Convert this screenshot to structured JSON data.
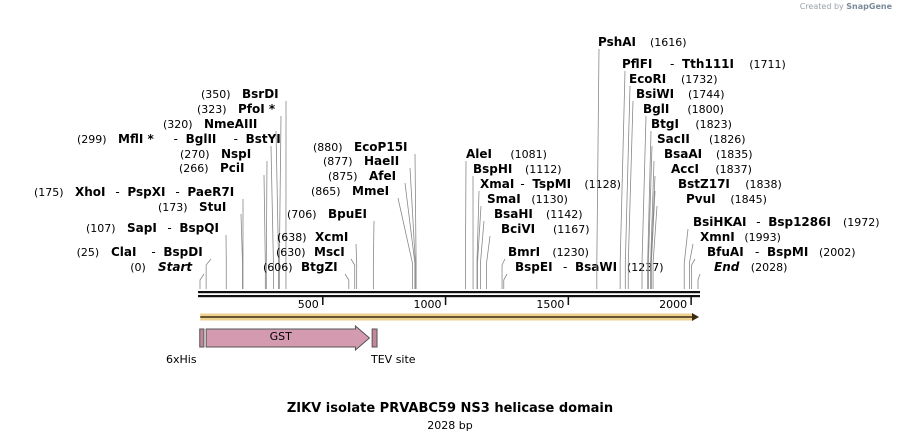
{
  "credit": {
    "prefix": "Created by",
    "brand": "SnapGene"
  },
  "title": "ZIKV isolate PRVABC59 NS3 helicase domain",
  "length_label": "2028 bp",
  "sequence_length": 2028,
  "ticks": [
    {
      "value": 500,
      "label": "500"
    },
    {
      "value": 1000,
      "label": "1000"
    },
    {
      "value": 1500,
      "label": "1500"
    },
    {
      "value": 2000,
      "label": "2000"
    }
  ],
  "features": [
    {
      "name": "6xHis",
      "label": "6xHis",
      "start": 1,
      "end": 18,
      "type": "tag",
      "color": "#c4869a"
    },
    {
      "name": "GST",
      "label": "GST",
      "start": 25,
      "end": 690,
      "type": "cds",
      "color": "#d49ab0"
    },
    {
      "name": "TEV site",
      "label": "TEV site",
      "start": 703,
      "end": 723,
      "type": "site",
      "color": "#c4869a"
    }
  ],
  "orf": {
    "start": 1,
    "end": 2028,
    "color": "#e8c06a"
  },
  "sites": [
    {
      "id": "start",
      "parts": [
        "Start"
      ],
      "pos": "(0)",
      "bp": 0,
      "italic": true
    },
    {
      "id": "clai",
      "parts": [
        "ClaI",
        "BspDI"
      ],
      "pos": "(25)",
      "bp": 25
    },
    {
      "id": "sapi",
      "parts": [
        "SapI",
        "BspQI"
      ],
      "pos": "(107)",
      "bp": 107
    },
    {
      "id": "stui",
      "parts": [
        "StuI"
      ],
      "pos": "(173)",
      "bp": 173
    },
    {
      "id": "xhoi",
      "parts": [
        "XhoI",
        "PspXI",
        "PaeR7I"
      ],
      "pos": "(175)",
      "bp": 175
    },
    {
      "id": "pcii",
      "parts": [
        "PciI"
      ],
      "pos": "(266)",
      "bp": 266
    },
    {
      "id": "nspi",
      "parts": [
        "NspI"
      ],
      "pos": "(270)",
      "bp": 270
    },
    {
      "id": "mfli",
      "parts": [
        "MflI *",
        "BglII",
        "BstYI"
      ],
      "pos": "(299)",
      "bp": 299
    },
    {
      "id": "nmeaiii",
      "parts": [
        "NmeAIII"
      ],
      "pos": "(320)",
      "bp": 320
    },
    {
      "id": "pfoi",
      "parts": [
        "PfoI *"
      ],
      "pos": "(323)",
      "bp": 323
    },
    {
      "id": "bsrdi",
      "parts": [
        "BsrDI"
      ],
      "pos": "(350)",
      "bp": 350
    },
    {
      "id": "btgzi",
      "parts": [
        "BtgZI"
      ],
      "pos": "(606)",
      "bp": 606
    },
    {
      "id": "msci",
      "parts": [
        "MscI"
      ],
      "pos": "(630)",
      "bp": 630
    },
    {
      "id": "xcmi",
      "parts": [
        "XcmI"
      ],
      "pos": "(638)",
      "bp": 638
    },
    {
      "id": "bpuei",
      "parts": [
        "BpuEI"
      ],
      "pos": "(706)",
      "bp": 706
    },
    {
      "id": "mmei",
      "parts": [
        "MmeI"
      ],
      "pos": "(865)",
      "bp": 865
    },
    {
      "id": "afei",
      "parts": [
        "AfeI"
      ],
      "pos": "(875)",
      "bp": 875
    },
    {
      "id": "haeii",
      "parts": [
        "HaeII"
      ],
      "pos": "(877)",
      "bp": 877
    },
    {
      "id": "ecop15i",
      "parts": [
        "EcoP15I"
      ],
      "pos": "(880)",
      "bp": 880
    },
    {
      "id": "alei",
      "parts": [
        "AleI"
      ],
      "pos": "(1081)",
      "bp": 1081
    },
    {
      "id": "bsphi",
      "parts": [
        "BspHI"
      ],
      "pos": "(1112)",
      "bp": 1112
    },
    {
      "id": "xmai",
      "parts": [
        "XmaI",
        "TspMI"
      ],
      "pos": "(1128)",
      "bp": 1128
    },
    {
      "id": "smai",
      "parts": [
        "SmaI"
      ],
      "pos": "(1130)",
      "bp": 1130
    },
    {
      "id": "bsahi",
      "parts": [
        "BsaHI"
      ],
      "pos": "(1142)",
      "bp": 1142
    },
    {
      "id": "bcivi",
      "parts": [
        "BciVI"
      ],
      "pos": "(1167)",
      "bp": 1167
    },
    {
      "id": "bmri",
      "parts": [
        "BmrI"
      ],
      "pos": "(1230)",
      "bp": 1230
    },
    {
      "id": "bspei",
      "parts": [
        "BspEI",
        "BsaWI"
      ],
      "pos": "(1237)",
      "bp": 1237
    },
    {
      "id": "pshai",
      "parts": [
        "PshAI"
      ],
      "pos": "(1616)",
      "bp": 1616
    },
    {
      "id": "pflfi",
      "parts": [
        "PflFI",
        "Tth111I"
      ],
      "pos": "(1711)",
      "bp": 1711
    },
    {
      "id": "ecori",
      "parts": [
        "EcoRI"
      ],
      "pos": "(1732)",
      "bp": 1732
    },
    {
      "id": "bsiwi",
      "parts": [
        "BsiWI"
      ],
      "pos": "(1744)",
      "bp": 1744
    },
    {
      "id": "bgli",
      "parts": [
        "BglI"
      ],
      "pos": "(1800)",
      "bp": 1800
    },
    {
      "id": "btgi",
      "parts": [
        "BtgI"
      ],
      "pos": "(1823)",
      "bp": 1823
    },
    {
      "id": "sacii",
      "parts": [
        "SacII"
      ],
      "pos": "(1826)",
      "bp": 1826
    },
    {
      "id": "bsaai",
      "parts": [
        "BsaAI"
      ],
      "pos": "(1835)",
      "bp": 1835
    },
    {
      "id": "acci",
      "parts": [
        "AccI"
      ],
      "pos": "(1837)",
      "bp": 1837
    },
    {
      "id": "bstz17i",
      "parts": [
        "BstZ17I"
      ],
      "pos": "(1838)",
      "bp": 1838
    },
    {
      "id": "pvui",
      "parts": [
        "PvuI"
      ],
      "pos": "(1845)",
      "bp": 1845
    },
    {
      "id": "bsihkai",
      "parts": [
        "BsiHKAI",
        "Bsp1286I"
      ],
      "pos": "(1972)",
      "bp": 1972
    },
    {
      "id": "xmni",
      "parts": [
        "XmnI"
      ],
      "pos": "(1993)",
      "bp": 1993
    },
    {
      "id": "bfuai",
      "parts": [
        "BfuAI",
        "BspMI"
      ],
      "pos": "(2002)",
      "bp": 2002
    },
    {
      "id": "end",
      "parts": [
        "End"
      ],
      "pos": "(2028)",
      "bp": 2028,
      "italic": true
    }
  ]
}
